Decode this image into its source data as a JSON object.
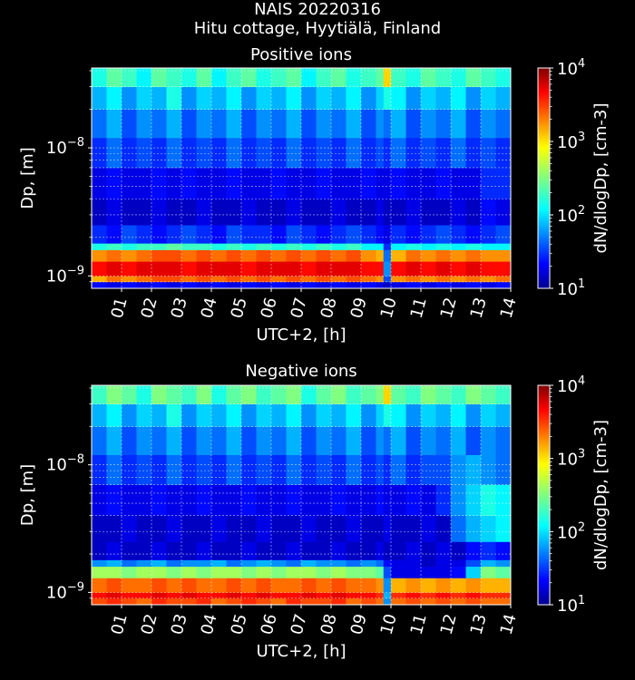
{
  "figure": {
    "title_line1": "NAIS 20220316",
    "title_line2": "Hitu cottage, Hyytiälä, Finland"
  },
  "colors": {
    "background": "#000000",
    "text": "#ffffff",
    "grid": "#ffffff",
    "colormap": "jet"
  },
  "chart_data": [
    {
      "type": "heatmap",
      "title": "Positive ions",
      "xlabel": "UTC+2, [h]",
      "ylabel": "Dp, [m]",
      "yscale": "log",
      "xlim": [
        0,
        14
      ],
      "ylim": [
        8e-10,
        4.2e-08
      ],
      "xticks": [
        "01",
        "02",
        "03",
        "04",
        "05",
        "06",
        "07",
        "08",
        "09",
        "10",
        "11",
        "12",
        "13",
        "14"
      ],
      "yticks": [
        {
          "value": 1e-09,
          "base": "10",
          "exp": "−9"
        },
        {
          "value": 1e-08,
          "base": "10",
          "exp": "−8"
        }
      ],
      "colorbar": {
        "label": "dN/dlogDp, [cm-3]",
        "scale": "log",
        "range": [
          10,
          10000
        ],
        "ticks": [
          {
            "value": 10,
            "base": "10",
            "exp": "1"
          },
          {
            "value": 100,
            "base": "10",
            "exp": "2"
          },
          {
            "value": 1000,
            "base": "10",
            "exp": "3"
          },
          {
            "value": 10000,
            "base": "10",
            "exp": "4"
          }
        ]
      },
      "grid": true,
      "x_edges": [
        0,
        0.5,
        1,
        1.5,
        2,
        2.5,
        3,
        3.5,
        4,
        4.5,
        5,
        5.5,
        6,
        6.5,
        7,
        7.5,
        8,
        8.5,
        9,
        9.5,
        9.75,
        10,
        10.5,
        11,
        11.5,
        12,
        12.5,
        13,
        13.5,
        14
      ],
      "y_edges": [
        8e-10,
        9e-10,
        1e-09,
        1.3e-09,
        1.6e-09,
        1.8e-09,
        2.5e-09,
        4e-09,
        7e-09,
        1.2e-08,
        2e-08,
        3e-08,
        4.2e-08
      ],
      "z_log10": [
        [
          1.4,
          1.3,
          1.4,
          1.3,
          1.4,
          1.3,
          1.4,
          1.3,
          1.4,
          1.3,
          1.4,
          1.3,
          1.4,
          1.3,
          1.4,
          1.3,
          1.4,
          1.3,
          1.4,
          1.3,
          1.2,
          1.3,
          1.4,
          1.3,
          1.4,
          1.3,
          1.4,
          1.3,
          1.4
        ],
        [
          3.1,
          3.3,
          3.2,
          3.3,
          3.4,
          3.4,
          3.3,
          3.4,
          3.3,
          3.4,
          3.3,
          3.4,
          3.3,
          3.4,
          3.3,
          3.4,
          3.3,
          3.4,
          3.3,
          3.2,
          1.6,
          3.2,
          3.3,
          3.2,
          3.3,
          3.2,
          3.3,
          3.2,
          3.3
        ],
        [
          3.6,
          3.7,
          3.6,
          3.7,
          3.7,
          3.7,
          3.6,
          3.7,
          3.7,
          3.7,
          3.6,
          3.7,
          3.7,
          3.7,
          3.6,
          3.7,
          3.7,
          3.7,
          3.6,
          3.6,
          1.8,
          3.6,
          3.7,
          3.6,
          3.7,
          3.6,
          3.7,
          3.6,
          3.6
        ],
        [
          3.2,
          3.3,
          3.2,
          3.3,
          3.4,
          3.4,
          3.3,
          3.4,
          3.3,
          3.4,
          3.3,
          3.4,
          3.3,
          3.4,
          3.3,
          3.4,
          3.3,
          3.4,
          3.2,
          3.1,
          1.7,
          3.1,
          3.3,
          3.2,
          3.3,
          3.2,
          3.3,
          3.2,
          3.2
        ],
        [
          2.2,
          2.3,
          2.2,
          2.3,
          2.3,
          2.4,
          2.3,
          2.3,
          2.2,
          2.3,
          2.2,
          2.3,
          2.2,
          2.3,
          2.2,
          2.3,
          2.2,
          2.3,
          2.1,
          2.1,
          1.5,
          2.1,
          2.2,
          2.1,
          2.2,
          2.1,
          2.2,
          2.1,
          2.1
        ],
        [
          1.5,
          1.4,
          1.6,
          1.5,
          1.4,
          1.5,
          1.6,
          1.5,
          1.4,
          1.6,
          1.5,
          1.5,
          1.4,
          1.6,
          1.5,
          1.4,
          1.5,
          1.6,
          1.5,
          1.4,
          1.3,
          1.5,
          1.4,
          1.5,
          1.6,
          1.5,
          1.4,
          1.5,
          1.6
        ],
        [
          1.2,
          1.3,
          1.2,
          1.2,
          1.3,
          1.2,
          1.2,
          1.3,
          1.2,
          1.2,
          1.3,
          1.2,
          1.2,
          1.3,
          1.2,
          1.2,
          1.3,
          1.2,
          1.2,
          1.3,
          1.2,
          1.2,
          1.3,
          1.2,
          1.2,
          1.3,
          1.2,
          1.4,
          1.3
        ],
        [
          1.3,
          1.4,
          1.3,
          1.3,
          1.4,
          1.3,
          1.4,
          1.3,
          1.3,
          1.4,
          1.3,
          1.3,
          1.4,
          1.3,
          1.3,
          1.4,
          1.3,
          1.3,
          1.4,
          1.3,
          1.3,
          1.4,
          1.3,
          1.3,
          1.4,
          1.3,
          1.3,
          1.5,
          1.5
        ],
        [
          1.5,
          1.7,
          1.5,
          1.6,
          1.5,
          1.7,
          1.5,
          1.6,
          1.5,
          1.7,
          1.5,
          1.6,
          1.5,
          1.7,
          1.5,
          1.6,
          1.5,
          1.7,
          1.5,
          1.6,
          1.5,
          1.7,
          1.5,
          1.6,
          1.5,
          1.7,
          1.5,
          1.6,
          1.5
        ],
        [
          1.7,
          1.9,
          1.6,
          1.8,
          1.7,
          1.9,
          1.6,
          1.8,
          1.7,
          1.9,
          1.6,
          1.8,
          1.7,
          1.9,
          1.6,
          1.8,
          1.7,
          1.9,
          1.6,
          1.8,
          1.7,
          1.9,
          1.6,
          1.8,
          1.7,
          1.9,
          1.6,
          1.8,
          1.7
        ],
        [
          1.9,
          2.1,
          1.8,
          2.0,
          1.9,
          2.2,
          1.8,
          2.0,
          1.9,
          2.1,
          1.8,
          2.0,
          1.9,
          2.1,
          1.8,
          2.0,
          1.9,
          2.1,
          1.8,
          2.0,
          2.2,
          2.1,
          1.8,
          2.0,
          1.9,
          2.1,
          1.8,
          2.0,
          1.9
        ],
        [
          2.2,
          2.4,
          2.3,
          2.1,
          2.4,
          2.3,
          2.2,
          2.4,
          2.1,
          2.3,
          2.4,
          2.2,
          2.3,
          2.4,
          2.1,
          2.3,
          2.4,
          2.2,
          2.3,
          2.4,
          3.0,
          2.3,
          2.2,
          2.4,
          2.3,
          2.2,
          2.4,
          2.3,
          2.2
        ]
      ]
    },
    {
      "type": "heatmap",
      "title": "Negative ions",
      "xlabel": "UTC+2, [h]",
      "ylabel": "Dp, [m]",
      "yscale": "log",
      "xlim": [
        0,
        14
      ],
      "ylim": [
        8e-10,
        4.2e-08
      ],
      "xticks": [
        "01",
        "02",
        "03",
        "04",
        "05",
        "06",
        "07",
        "08",
        "09",
        "10",
        "11",
        "12",
        "13",
        "14"
      ],
      "yticks": [
        {
          "value": 1e-09,
          "base": "10",
          "exp": "−9"
        },
        {
          "value": 1e-08,
          "base": "10",
          "exp": "−8"
        }
      ],
      "colorbar": {
        "label": "dN/dlogDp, [cm-3]",
        "scale": "log",
        "range": [
          10,
          10000
        ],
        "ticks": [
          {
            "value": 10,
            "base": "10",
            "exp": "1"
          },
          {
            "value": 100,
            "base": "10",
            "exp": "2"
          },
          {
            "value": 1000,
            "base": "10",
            "exp": "3"
          },
          {
            "value": 10000,
            "base": "10",
            "exp": "4"
          }
        ]
      },
      "grid": true,
      "x_edges": [
        0,
        0.5,
        1,
        1.5,
        2,
        2.5,
        3,
        3.5,
        4,
        4.5,
        5,
        5.5,
        6,
        6.5,
        7,
        7.5,
        8,
        8.5,
        9,
        9.5,
        9.75,
        10,
        10.5,
        11,
        11.5,
        12,
        12.5,
        13,
        13.5,
        14
      ],
      "y_edges": [
        8e-10,
        9e-10,
        1e-09,
        1.3e-09,
        1.6e-09,
        1.8e-09,
        2.5e-09,
        4e-09,
        7e-09,
        1.2e-08,
        2e-08,
        3e-08,
        4.2e-08
      ],
      "z_log10": [
        [
          3.4,
          3.5,
          3.4,
          3.3,
          3.5,
          3.4,
          3.4,
          3.5,
          3.3,
          3.4,
          3.5,
          3.4,
          3.3,
          3.5,
          3.4,
          3.4,
          3.5,
          3.3,
          3.4,
          3.3,
          1.8,
          3.3,
          3.4,
          3.3,
          3.4,
          3.3,
          3.4,
          3.3,
          3.3
        ],
        [
          3.6,
          3.7,
          3.6,
          3.6,
          3.7,
          3.6,
          3.7,
          3.6,
          3.6,
          3.7,
          3.6,
          3.7,
          3.6,
          3.6,
          3.7,
          3.6,
          3.7,
          3.6,
          3.6,
          3.5,
          1.9,
          3.5,
          3.6,
          3.5,
          3.6,
          3.5,
          3.6,
          3.5,
          3.5
        ],
        [
          3.3,
          3.4,
          3.3,
          3.3,
          3.4,
          3.3,
          3.4,
          3.3,
          3.3,
          3.4,
          3.3,
          3.4,
          3.3,
          3.3,
          3.4,
          3.3,
          3.4,
          3.3,
          3.3,
          3.2,
          1.8,
          3.1,
          3.2,
          3.1,
          3.2,
          3.1,
          3.2,
          3.1,
          3.1
        ],
        [
          2.6,
          2.6,
          2.5,
          2.6,
          2.6,
          2.5,
          2.6,
          2.5,
          2.6,
          2.6,
          2.5,
          2.6,
          2.5,
          2.6,
          2.6,
          2.5,
          2.6,
          2.5,
          2.5,
          2.4,
          1.6,
          1.3,
          1.3,
          1.3,
          1.3,
          1.4,
          2.0,
          2.5,
          2.4
        ],
        [
          1.8,
          1.9,
          1.7,
          1.8,
          1.9,
          1.7,
          1.8,
          1.8,
          1.9,
          1.7,
          1.8,
          1.9,
          1.8,
          1.7,
          1.9,
          1.8,
          1.8,
          1.7,
          1.8,
          1.7,
          1.4,
          1.3,
          1.3,
          1.2,
          1.3,
          1.3,
          1.6,
          1.9,
          1.8
        ],
        [
          1.2,
          1.3,
          1.2,
          1.2,
          1.3,
          1.2,
          1.2,
          1.3,
          1.2,
          1.2,
          1.3,
          1.2,
          1.2,
          1.3,
          1.2,
          1.2,
          1.3,
          1.2,
          1.2,
          1.3,
          1.2,
          1.2,
          1.3,
          1.2,
          1.3,
          1.2,
          1.4,
          1.5,
          1.4
        ],
        [
          1.2,
          1.2,
          1.3,
          1.2,
          1.2,
          1.3,
          1.2,
          1.2,
          1.3,
          1.2,
          1.2,
          1.3,
          1.2,
          1.2,
          1.3,
          1.2,
          1.2,
          1.3,
          1.2,
          1.2,
          1.3,
          1.2,
          1.2,
          1.3,
          1.2,
          1.7,
          1.9,
          2.0,
          2.1
        ],
        [
          1.3,
          1.4,
          1.3,
          1.3,
          1.4,
          1.3,
          1.3,
          1.4,
          1.3,
          1.3,
          1.4,
          1.3,
          1.3,
          1.4,
          1.3,
          1.3,
          1.4,
          1.3,
          1.3,
          1.4,
          1.3,
          1.3,
          1.4,
          1.3,
          1.5,
          1.8,
          2.0,
          2.2,
          2.1
        ],
        [
          1.5,
          1.7,
          1.5,
          1.6,
          1.5,
          1.7,
          1.5,
          1.6,
          1.5,
          1.7,
          1.5,
          1.6,
          1.5,
          1.7,
          1.5,
          1.6,
          1.5,
          1.7,
          1.5,
          1.6,
          1.5,
          1.7,
          1.5,
          1.6,
          1.6,
          1.8,
          1.9,
          1.8,
          1.7
        ],
        [
          1.7,
          1.9,
          1.6,
          1.8,
          1.7,
          1.9,
          1.6,
          1.8,
          1.7,
          1.9,
          1.6,
          1.8,
          1.7,
          1.9,
          1.6,
          1.8,
          1.7,
          1.9,
          1.6,
          1.8,
          1.7,
          1.9,
          1.6,
          1.8,
          1.7,
          1.9,
          1.6,
          1.8,
          1.7
        ],
        [
          1.9,
          2.1,
          1.8,
          2.0,
          1.9,
          2.2,
          1.8,
          2.0,
          1.9,
          2.1,
          1.8,
          2.0,
          1.9,
          2.1,
          1.8,
          2.0,
          1.9,
          2.1,
          1.8,
          2.0,
          2.2,
          2.1,
          1.8,
          2.0,
          1.9,
          2.1,
          1.8,
          2.0,
          1.9
        ],
        [
          2.3,
          2.5,
          2.4,
          2.2,
          2.5,
          2.4,
          2.3,
          2.5,
          2.2,
          2.4,
          2.5,
          2.3,
          2.4,
          2.5,
          2.2,
          2.4,
          2.5,
          2.3,
          2.4,
          2.5,
          3.0,
          2.4,
          2.3,
          2.5,
          2.4,
          2.3,
          2.5,
          2.4,
          2.3
        ]
      ]
    }
  ]
}
